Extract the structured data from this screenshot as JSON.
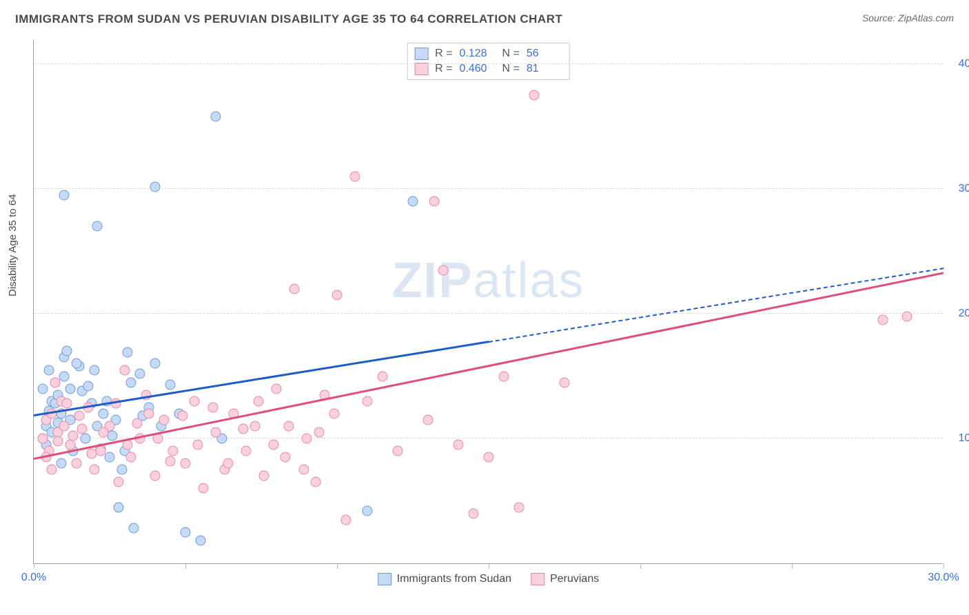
{
  "header": {
    "title": "IMMIGRANTS FROM SUDAN VS PERUVIAN DISABILITY AGE 35 TO 64 CORRELATION CHART",
    "source": "Source: ZipAtlas.com"
  },
  "chart": {
    "type": "scatter",
    "ylabel": "Disability Age 35 to 64",
    "watermark_zip": "ZIP",
    "watermark_atlas": "atlas",
    "xlim": [
      0,
      30
    ],
    "ylim": [
      0,
      42
    ],
    "ytick_values": [
      10,
      20,
      30,
      40
    ],
    "ytick_labels": [
      "10.0%",
      "20.0%",
      "30.0%",
      "40.0%"
    ],
    "xtick_values": [
      0,
      5,
      10,
      15,
      20,
      25,
      30
    ],
    "xtick_labels": [
      "0.0%",
      "",
      "",
      "",
      "",
      "",
      "30.0%"
    ],
    "background_color": "#ffffff",
    "grid_color": "#d8d8d8",
    "axis_color": "#999999",
    "ytick_color": "#3b6fd6",
    "series": [
      {
        "name": "Immigrants from Sudan",
        "short": "sudan",
        "marker_fill": "#c6daf5",
        "marker_stroke": "#6e9bd8",
        "line_color": "#1e5bc6",
        "r_label": "R =",
        "r_value": "0.128",
        "n_label": "N =",
        "n_value": "56",
        "trend": {
          "x1": 0,
          "y1": 11.8,
          "x2": 15,
          "y2": 17.5,
          "x_solid_end": 15,
          "x_dash_end": 30,
          "y_dash_end": 23.6
        },
        "points": [
          [
            0.4,
            11.0
          ],
          [
            0.5,
            12.2
          ],
          [
            0.6,
            13.0
          ],
          [
            0.7,
            14.5
          ],
          [
            0.8,
            11.3
          ],
          [
            0.4,
            9.5
          ],
          [
            0.9,
            12.0
          ],
          [
            1.0,
            15.0
          ],
          [
            1.0,
            16.5
          ],
          [
            1.1,
            17.0
          ],
          [
            1.2,
            14.0
          ],
          [
            1.5,
            15.8
          ],
          [
            1.6,
            13.8
          ],
          [
            1.8,
            14.2
          ],
          [
            2.0,
            15.5
          ],
          [
            2.1,
            11.0
          ],
          [
            2.3,
            12.0
          ],
          [
            2.5,
            8.5
          ],
          [
            2.6,
            10.2
          ],
          [
            2.8,
            4.5
          ],
          [
            3.0,
            9.0
          ],
          [
            3.1,
            16.9
          ],
          [
            3.3,
            2.8
          ],
          [
            3.5,
            15.2
          ],
          [
            3.8,
            12.5
          ],
          [
            4.2,
            11.0
          ],
          [
            4.5,
            14.3
          ],
          [
            5.0,
            2.5
          ],
          [
            5.5,
            1.8
          ],
          [
            6.2,
            10.0
          ],
          [
            1.0,
            29.5
          ],
          [
            2.1,
            27.0
          ],
          [
            4.0,
            30.2
          ],
          [
            6.0,
            35.8
          ],
          [
            11.0,
            4.2
          ],
          [
            12.5,
            29.0
          ],
          [
            0.3,
            14.0
          ],
          [
            0.5,
            15.5
          ],
          [
            0.6,
            10.5
          ],
          [
            0.7,
            12.8
          ],
          [
            0.8,
            13.5
          ],
          [
            1.2,
            11.5
          ],
          [
            1.4,
            16.0
          ],
          [
            1.7,
            10.0
          ],
          [
            2.2,
            9.2
          ],
          [
            2.4,
            13.0
          ],
          [
            2.9,
            7.5
          ],
          [
            3.2,
            14.5
          ],
          [
            3.6,
            11.8
          ],
          [
            4.0,
            16.0
          ],
          [
            4.8,
            12.0
          ],
          [
            0.3,
            10.0
          ],
          [
            0.9,
            8.0
          ],
          [
            1.3,
            9.0
          ],
          [
            1.9,
            12.8
          ],
          [
            2.7,
            11.5
          ]
        ]
      },
      {
        "name": "Peruvians",
        "short": "peruvians",
        "marker_fill": "#f9d1de",
        "marker_stroke": "#e886a8",
        "line_color": "#e04d7a",
        "r_label": "R =",
        "r_value": "0.460",
        "n_label": "N =",
        "n_value": "81",
        "trend": {
          "x1": 0,
          "y1": 8.3,
          "x2": 30,
          "y2": 23.2,
          "x_solid_end": 30
        },
        "points": [
          [
            0.3,
            10.0
          ],
          [
            0.4,
            11.5
          ],
          [
            0.5,
            9.0
          ],
          [
            0.6,
            12.0
          ],
          [
            0.7,
            14.5
          ],
          [
            0.8,
            10.5
          ],
          [
            0.9,
            13.0
          ],
          [
            1.0,
            11.0
          ],
          [
            1.2,
            9.5
          ],
          [
            1.4,
            8.0
          ],
          [
            1.6,
            10.8
          ],
          [
            1.8,
            12.5
          ],
          [
            2.0,
            7.5
          ],
          [
            2.2,
            9.0
          ],
          [
            2.5,
            11.0
          ],
          [
            2.8,
            6.5
          ],
          [
            3.0,
            15.5
          ],
          [
            3.2,
            8.5
          ],
          [
            3.5,
            10.0
          ],
          [
            3.8,
            12.0
          ],
          [
            4.0,
            7.0
          ],
          [
            4.3,
            11.5
          ],
          [
            4.6,
            9.0
          ],
          [
            5.0,
            8.0
          ],
          [
            5.3,
            13.0
          ],
          [
            5.6,
            6.0
          ],
          [
            6.0,
            10.5
          ],
          [
            6.3,
            7.5
          ],
          [
            6.6,
            12.0
          ],
          [
            7.0,
            9.0
          ],
          [
            7.3,
            11.0
          ],
          [
            7.6,
            7.0
          ],
          [
            8.0,
            14.0
          ],
          [
            8.3,
            8.5
          ],
          [
            8.6,
            22.0
          ],
          [
            9.0,
            10.0
          ],
          [
            9.3,
            6.5
          ],
          [
            9.6,
            13.5
          ],
          [
            10.0,
            21.5
          ],
          [
            10.3,
            3.5
          ],
          [
            10.6,
            31.0
          ],
          [
            11.0,
            13.0
          ],
          [
            11.5,
            15.0
          ],
          [
            12.0,
            9.0
          ],
          [
            13.0,
            11.5
          ],
          [
            13.2,
            29.0
          ],
          [
            13.5,
            23.5
          ],
          [
            14.0,
            9.5
          ],
          [
            14.5,
            4.0
          ],
          [
            15.0,
            8.5
          ],
          [
            15.5,
            15.0
          ],
          [
            16.0,
            4.5
          ],
          [
            16.5,
            37.5
          ],
          [
            17.5,
            14.5
          ],
          [
            28.0,
            19.5
          ],
          [
            28.8,
            19.8
          ],
          [
            0.4,
            8.5
          ],
          [
            0.6,
            7.5
          ],
          [
            0.8,
            9.8
          ],
          [
            1.1,
            12.8
          ],
          [
            1.3,
            10.2
          ],
          [
            1.5,
            11.8
          ],
          [
            1.9,
            8.8
          ],
          [
            2.3,
            10.5
          ],
          [
            2.7,
            12.8
          ],
          [
            3.1,
            9.5
          ],
          [
            3.4,
            11.2
          ],
          [
            3.7,
            13.5
          ],
          [
            4.1,
            10.0
          ],
          [
            4.5,
            8.2
          ],
          [
            4.9,
            11.8
          ],
          [
            5.4,
            9.5
          ],
          [
            5.9,
            12.5
          ],
          [
            6.4,
            8.0
          ],
          [
            6.9,
            10.8
          ],
          [
            7.4,
            13.0
          ],
          [
            7.9,
            9.5
          ],
          [
            8.4,
            11.0
          ],
          [
            8.9,
            7.5
          ],
          [
            9.4,
            10.5
          ],
          [
            9.9,
            12.0
          ]
        ]
      }
    ],
    "legend_bottom": [
      {
        "label": "Immigrants from Sudan",
        "series": 0
      },
      {
        "label": "Peruvians",
        "series": 1
      }
    ]
  }
}
